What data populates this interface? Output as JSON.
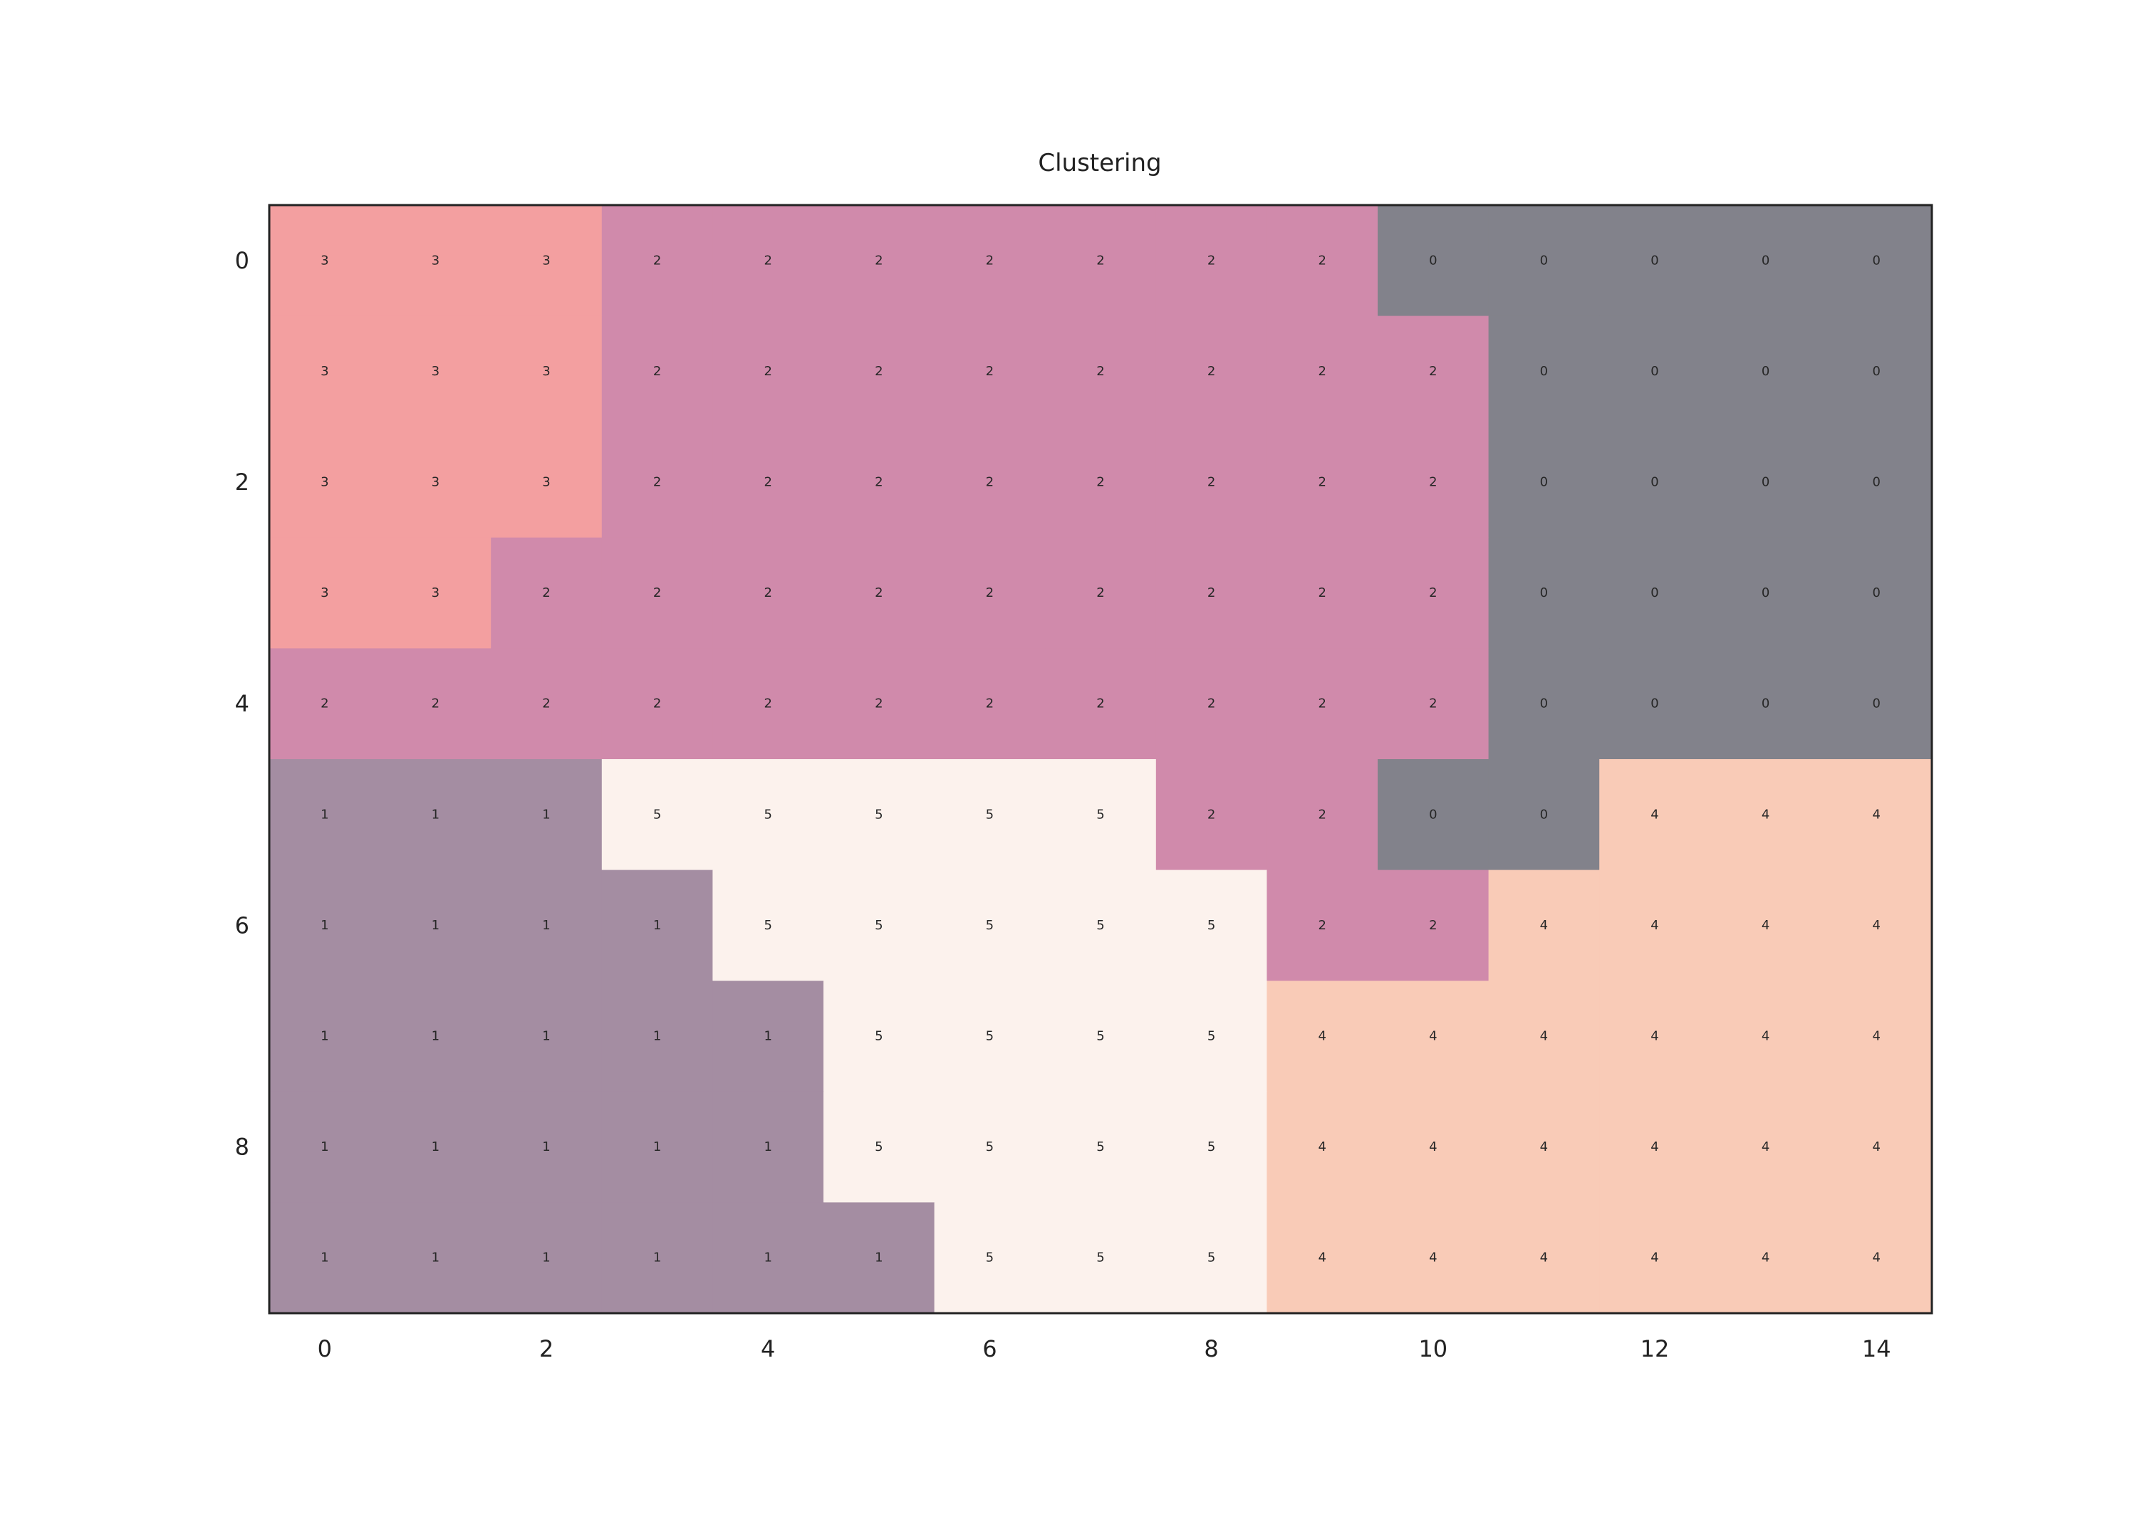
{
  "chart_data": {
    "type": "heatmap",
    "title": "Clustering",
    "xlabel": "",
    "ylabel": "",
    "x_ticks": [
      0,
      2,
      4,
      6,
      8,
      10,
      12,
      14
    ],
    "y_ticks": [
      0,
      2,
      4,
      6,
      8
    ],
    "n_rows": 10,
    "n_cols": 15,
    "grid": false,
    "values": [
      [
        3,
        3,
        3,
        2,
        2,
        2,
        2,
        2,
        2,
        2,
        0,
        0,
        0,
        0,
        0
      ],
      [
        3,
        3,
        3,
        2,
        2,
        2,
        2,
        2,
        2,
        2,
        2,
        0,
        0,
        0,
        0
      ],
      [
        3,
        3,
        3,
        2,
        2,
        2,
        2,
        2,
        2,
        2,
        2,
        0,
        0,
        0,
        0
      ],
      [
        3,
        3,
        2,
        2,
        2,
        2,
        2,
        2,
        2,
        2,
        2,
        0,
        0,
        0,
        0
      ],
      [
        2,
        2,
        2,
        2,
        2,
        2,
        2,
        2,
        2,
        2,
        2,
        0,
        0,
        0,
        0
      ],
      [
        1,
        1,
        1,
        5,
        5,
        5,
        5,
        5,
        2,
        2,
        0,
        0,
        4,
        4,
        4
      ],
      [
        1,
        1,
        1,
        1,
        5,
        5,
        5,
        5,
        5,
        2,
        2,
        4,
        4,
        4,
        4
      ],
      [
        1,
        1,
        1,
        1,
        1,
        5,
        5,
        5,
        5,
        4,
        4,
        4,
        4,
        4,
        4
      ],
      [
        1,
        1,
        1,
        1,
        1,
        5,
        5,
        5,
        5,
        4,
        4,
        4,
        4,
        4,
        4
      ],
      [
        1,
        1,
        1,
        1,
        1,
        1,
        5,
        5,
        5,
        4,
        4,
        4,
        4,
        4,
        4
      ]
    ],
    "cluster_colors": {
      "0": "#82828b",
      "1": "#a48da2",
      "2": "#d08aab",
      "3": "#f39fa0",
      "4": "#f9cbb7",
      "5": "#fcf2ed"
    },
    "frame_color": "#222222"
  }
}
